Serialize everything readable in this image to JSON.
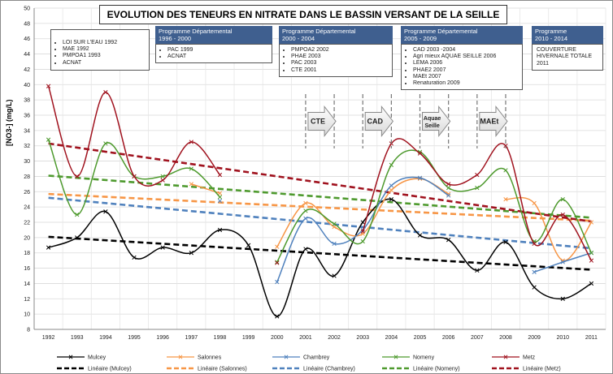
{
  "title": "EVOLUTION DES TENEURS EN NITRATE DANS LE BASSIN VERSANT DE LA SEILLE",
  "ylabel": "[NO3-] (mg/L)",
  "programmes": [
    {
      "header_l1": "",
      "header_l2": "",
      "items": [
        "LOI SUR L'EAU 1992",
        "MAE 1992",
        "PMPOA1 1993",
        "ACNAT"
      ]
    },
    {
      "header_l1": "Programme Départemental",
      "header_l2": "1996 - 2000",
      "items": [
        "PAC 1999",
        "ACNAT"
      ]
    },
    {
      "header_l1": "Programme Départemental",
      "header_l2": "2000 - 2004",
      "items": [
        "PMPOA2 2002",
        "PHAE 2003",
        "PAC 2003",
        "CTE 2001"
      ]
    },
    {
      "header_l1": "Programme Départemental",
      "header_l2": "2005 - 2009",
      "items": [
        "CAD 2003 -2004",
        "Agri mieux AQUAE SEILLE 2006",
        "LEMA 2006",
        "PHAE2 2007",
        "MAEt 2007",
        "Renaturation 2009"
      ]
    },
    {
      "header_l1": "Programme",
      "header_l2": "2010 - 2014",
      "items": [
        "COUVERTURE HIVERNALE TOTALE 2011"
      ]
    }
  ],
  "arrows": [
    {
      "label": "CTE",
      "start": 2001,
      "end": 2002
    },
    {
      "label": "CAD",
      "start": 2003,
      "end": 2004
    },
    {
      "label": "Aquae Seille",
      "start": 2005,
      "end": 2006
    },
    {
      "label": "MAEt",
      "start": 2007,
      "end": 2008
    }
  ],
  "chart_data": {
    "type": "line",
    "x": [
      1992,
      1993,
      1994,
      1995,
      1996,
      1997,
      1998,
      1999,
      2000,
      2001,
      2002,
      2003,
      2004,
      2005,
      2006,
      2007,
      2008,
      2009,
      2010,
      2011
    ],
    "ylim": [
      8,
      50
    ],
    "yticks": [
      8,
      10,
      12,
      14,
      16,
      18,
      20,
      22,
      24,
      26,
      28,
      30,
      32,
      34,
      36,
      38,
      40,
      42,
      44,
      46,
      48,
      50
    ],
    "grid": true,
    "legend_position": "bottom",
    "series": [
      {
        "name": "Mulcey",
        "color": "#000000",
        "values": [
          18.7,
          20,
          23.4,
          17.4,
          18.7,
          18,
          21,
          19,
          9.7,
          18.5,
          15,
          22,
          25,
          20.3,
          19.7,
          15.7,
          19.4,
          13.5,
          12,
          14
        ]
      },
      {
        "name": "Salonnes",
        "color": "#f79646",
        "values": [
          null,
          null,
          null,
          null,
          null,
          27,
          25.8,
          null,
          18.8,
          24.5,
          21.4,
          20.5,
          26.2,
          27.7,
          25.7,
          null,
          25,
          24.5,
          17,
          22
        ]
      },
      {
        "name": "Chambrey",
        "color": "#4f81bd",
        "values": [
          null,
          null,
          null,
          null,
          null,
          null,
          24.8,
          null,
          14.2,
          22.5,
          19.2,
          21,
          26.8,
          27.8,
          25.5,
          null,
          null,
          15.5,
          16.8,
          18
        ]
      },
      {
        "name": "Nomeny",
        "color": "#4e9a2e",
        "values": [
          32.8,
          23,
          32.3,
          28,
          28,
          29,
          25.3,
          null,
          16.8,
          23.5,
          21.8,
          19.5,
          29.5,
          31.2,
          26.5,
          26.5,
          28.8,
          19.5,
          25,
          18
        ]
      },
      {
        "name": "Metz",
        "color": "#a0121e",
        "values": [
          39.8,
          28,
          39,
          28,
          27.5,
          32.5,
          28.2,
          null,
          16.7,
          null,
          null,
          20.8,
          32.3,
          31,
          27,
          28.2,
          32,
          19.2,
          23,
          17
        ]
      }
    ],
    "trendlines": [
      {
        "name": "Linéaire (Mulcey)",
        "color": "#000000",
        "start": 20.1,
        "end": 15.8
      },
      {
        "name": "Linéaire (Salonnes)",
        "color": "#f79646",
        "start": 25.7,
        "end": 22.2
      },
      {
        "name": "Linéaire (Chambrey)",
        "color": "#4f81bd",
        "start": 25.2,
        "end": 18.6
      },
      {
        "name": "Linéaire (Nomeny)",
        "color": "#4e9a2e",
        "start": 28.1,
        "end": 22.6
      },
      {
        "name": "Linéaire (Metz)",
        "color": "#a0121e",
        "start": 32.3,
        "end": 22.1
      }
    ]
  }
}
